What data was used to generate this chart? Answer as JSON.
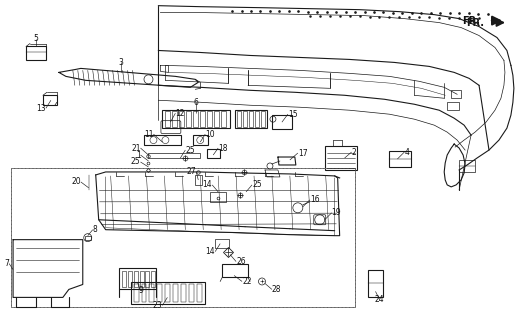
{
  "bg_color": "#ffffff",
  "line_color": "#1a1a1a",
  "label_color": "#111111",
  "lw_thin": 0.5,
  "lw_med": 0.8,
  "lw_thick": 1.1,
  "label_fs": 5.5
}
